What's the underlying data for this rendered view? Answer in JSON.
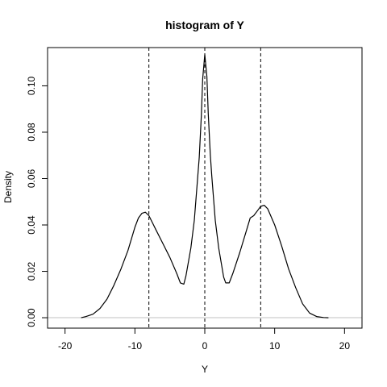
{
  "chart_data": {
    "type": "line",
    "title": "histogram of Y",
    "xlabel": "Y",
    "ylabel": "Density",
    "xlim": [
      -22.5,
      22.5
    ],
    "ylim": [
      -0.0045,
      0.1165
    ],
    "x_ticks": [
      -20,
      -10,
      0,
      10,
      20
    ],
    "x_tick_labels": [
      "-20",
      "-10",
      "0",
      "10",
      "20"
    ],
    "y_ticks": [
      0.0,
      0.02,
      0.04,
      0.06,
      0.08,
      0.1
    ],
    "y_tick_labels": [
      "0.00",
      "0.02",
      "0.04",
      "0.06",
      "0.08",
      "0.10"
    ],
    "baseline": 0,
    "baseline_color": "#c0c0c0",
    "vlines": [
      -8,
      0,
      8
    ],
    "vline_style": "dashed",
    "grid": false,
    "legend": "none",
    "series": [
      {
        "x": [
          -17.7,
          -17.0,
          -16.0,
          -15.0,
          -14.0,
          -13.0,
          -12.0,
          -11.0,
          -10.0,
          -9.5,
          -9.0,
          -8.5,
          -8.0,
          -7.5,
          -7.0,
          -6.0,
          -5.0,
          -4.0,
          -3.5,
          -3.0,
          -2.7,
          -2.0,
          -1.5,
          -1.0,
          -0.8,
          -0.5,
          -0.3,
          0.0,
          0.3,
          0.5,
          0.8,
          1.0,
          1.5,
          2.0,
          2.7,
          3.0,
          3.5,
          4.0,
          5.0,
          6.0,
          6.5,
          7.0,
          7.5,
          8.0,
          8.5,
          9.0,
          10.0,
          11.0,
          12.0,
          13.0,
          14.0,
          15.0,
          16.0,
          17.0,
          17.7
        ],
        "y": [
          0.0,
          0.0005,
          0.0015,
          0.004,
          0.008,
          0.014,
          0.021,
          0.029,
          0.039,
          0.043,
          0.045,
          0.0455,
          0.044,
          0.041,
          0.038,
          0.032,
          0.026,
          0.019,
          0.015,
          0.0145,
          0.018,
          0.03,
          0.042,
          0.061,
          0.069,
          0.087,
          0.103,
          0.1135,
          0.104,
          0.088,
          0.07,
          0.061,
          0.042,
          0.03,
          0.0175,
          0.015,
          0.015,
          0.019,
          0.028,
          0.038,
          0.043,
          0.044,
          0.046,
          0.048,
          0.0485,
          0.047,
          0.04,
          0.031,
          0.021,
          0.013,
          0.006,
          0.002,
          0.0005,
          0.0001,
          0.0
        ],
        "color": "#000000"
      }
    ]
  }
}
